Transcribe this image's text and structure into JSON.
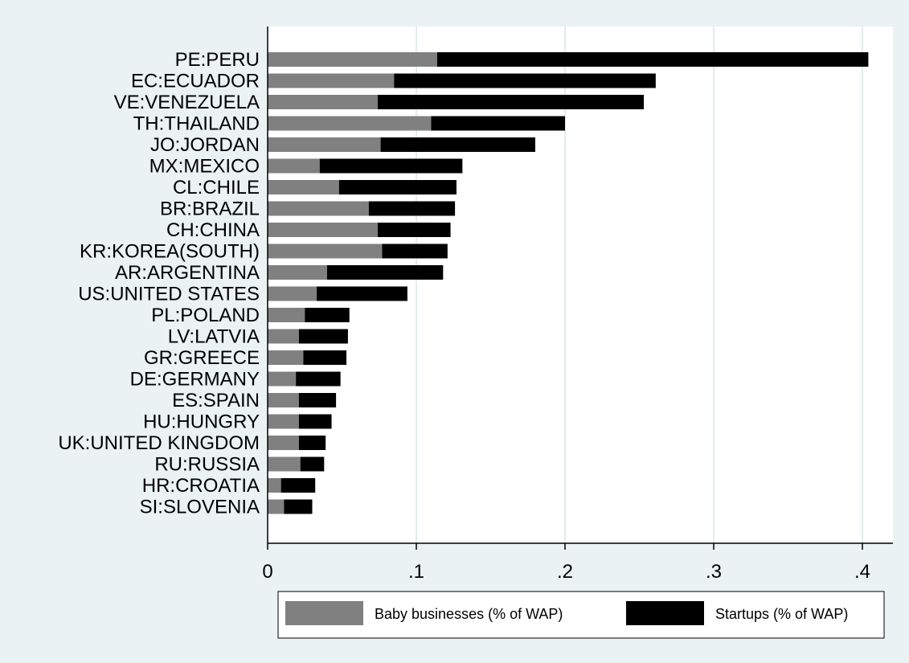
{
  "chart_data": {
    "type": "bar",
    "orientation": "horizontal",
    "stacked": true,
    "categories": [
      "PE:PERU",
      "EC:ECUADOR",
      "VE:VENEZUELA",
      "TH:THAILAND",
      "JO:JORDAN",
      "MX:MEXICO",
      "CL:CHILE",
      "BR:BRAZIL",
      "CH:CHINA",
      "KR:KOREA(SOUTH)",
      "AR:ARGENTINA",
      "US:UNITED STATES",
      "PL:POLAND",
      "LV:LATVIA",
      "GR:GREECE",
      "DE:GERMANY",
      "ES:SPAIN",
      "HU:HUNGRY",
      "UK:UNITED KINGDOM",
      "RU:RUSSIA",
      "HR:CROATIA",
      "SI:SLOVENIA"
    ],
    "series": [
      {
        "name": "Baby businesses (% of WAP)",
        "color": "#808080",
        "values": [
          0.114,
          0.085,
          0.074,
          0.11,
          0.076,
          0.035,
          0.048,
          0.068,
          0.074,
          0.077,
          0.04,
          0.033,
          0.025,
          0.021,
          0.024,
          0.019,
          0.021,
          0.021,
          0.021,
          0.022,
          0.009,
          0.011
        ]
      },
      {
        "name": "Startups (% of WAP)",
        "color": "#000000",
        "values": [
          0.29,
          0.176,
          0.179,
          0.09,
          0.104,
          0.096,
          0.079,
          0.058,
          0.049,
          0.044,
          0.078,
          0.061,
          0.03,
          0.033,
          0.029,
          0.03,
          0.025,
          0.022,
          0.018,
          0.016,
          0.023,
          0.019
        ]
      }
    ],
    "xlim": [
      0,
      0.42
    ],
    "xticks": [
      0,
      0.1,
      0.2,
      0.3,
      0.4
    ],
    "xtick_labels": [
      "0",
      ".1",
      ".2",
      ".3",
      ".4"
    ],
    "grid": true,
    "legend_position": "bottom"
  }
}
